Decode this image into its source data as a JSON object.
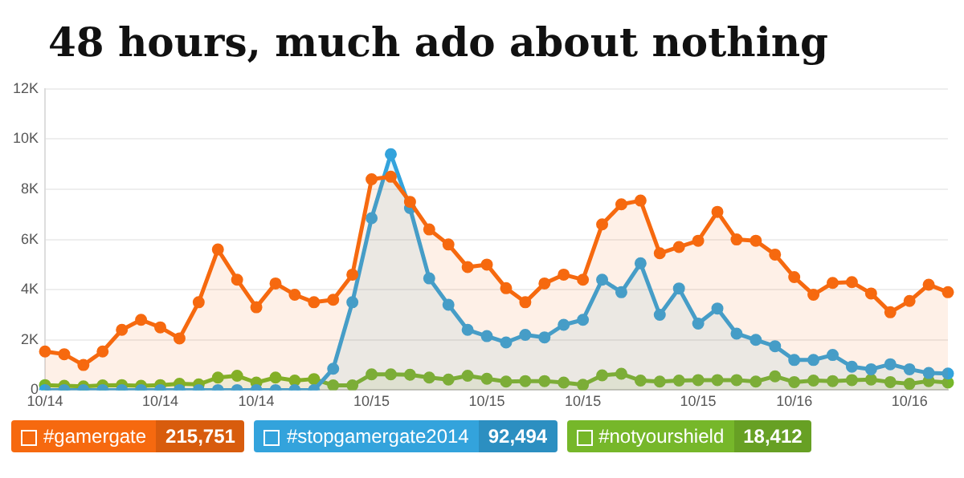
{
  "chart_data": {
    "type": "area",
    "title": "48 hours, much ado about nothing",
    "categories": [
      "10/14",
      null,
      null,
      null,
      null,
      null,
      "10/14",
      null,
      null,
      null,
      null,
      "10/14",
      null,
      null,
      null,
      null,
      null,
      "10/15",
      null,
      null,
      null,
      null,
      null,
      "10/15",
      null,
      null,
      null,
      null,
      "10/15",
      null,
      null,
      null,
      null,
      null,
      "10/15",
      null,
      null,
      null,
      null,
      "10/16",
      null,
      null,
      null,
      null,
      null,
      "10/16",
      null,
      null
    ],
    "series": [
      {
        "name": "#gamergate",
        "color": "#f6690f",
        "values": [
          1540,
          1430,
          1000,
          1540,
          2400,
          2800,
          2500,
          2060,
          3500,
          5600,
          4400,
          3300,
          4250,
          3800,
          3500,
          3600,
          4600,
          8400,
          8500,
          7500,
          6400,
          5800,
          4900,
          5000,
          4060,
          3500,
          4250,
          4600,
          4400,
          6600,
          7400,
          7550,
          5450,
          5700,
          5950,
          7100,
          6000,
          5950,
          5400,
          4500,
          3800,
          4270,
          4300,
          3850,
          3100,
          3550,
          4200,
          3900
        ]
      },
      {
        "name": "#stopgamergate2014",
        "color": "#33a3dc",
        "values": [
          0,
          0,
          0,
          0,
          0,
          0,
          0,
          0,
          0,
          0,
          0,
          0,
          0,
          0,
          0,
          850,
          3500,
          6850,
          9400,
          7250,
          4450,
          3400,
          2400,
          2150,
          1900,
          2200,
          2100,
          2600,
          2800,
          4400,
          3900,
          5050,
          3000,
          4050,
          2650,
          3250,
          2250,
          2000,
          1750,
          1200,
          1200,
          1400,
          930,
          830,
          1030,
          830,
          680,
          660
        ]
      },
      {
        "name": "#notyourshield",
        "color": "#76b72a",
        "values": [
          200,
          170,
          150,
          190,
          200,
          170,
          200,
          250,
          230,
          500,
          570,
          300,
          500,
          380,
          440,
          190,
          190,
          630,
          630,
          610,
          500,
          420,
          570,
          450,
          340,
          360,
          360,
          300,
          210,
          590,
          650,
          380,
          340,
          380,
          400,
          400,
          400,
          340,
          550,
          320,
          380,
          360,
          400,
          420,
          320,
          250,
          360,
          300
        ]
      }
    ],
    "ylim": [
      0,
      12000
    ],
    "yticks": [
      {
        "value": 0,
        "label": "0"
      },
      {
        "value": 2000,
        "label": "2K"
      },
      {
        "value": 4000,
        "label": "4K"
      },
      {
        "value": 6000,
        "label": "6K"
      },
      {
        "value": 8000,
        "label": "8K"
      },
      {
        "value": 10000,
        "label": "10K"
      },
      {
        "value": 12000,
        "label": "12K"
      }
    ],
    "grid": "y",
    "legend": "bottom",
    "marker": "circle",
    "annotations": [
      "215,751",
      "92,494",
      "18,412"
    ]
  }
}
